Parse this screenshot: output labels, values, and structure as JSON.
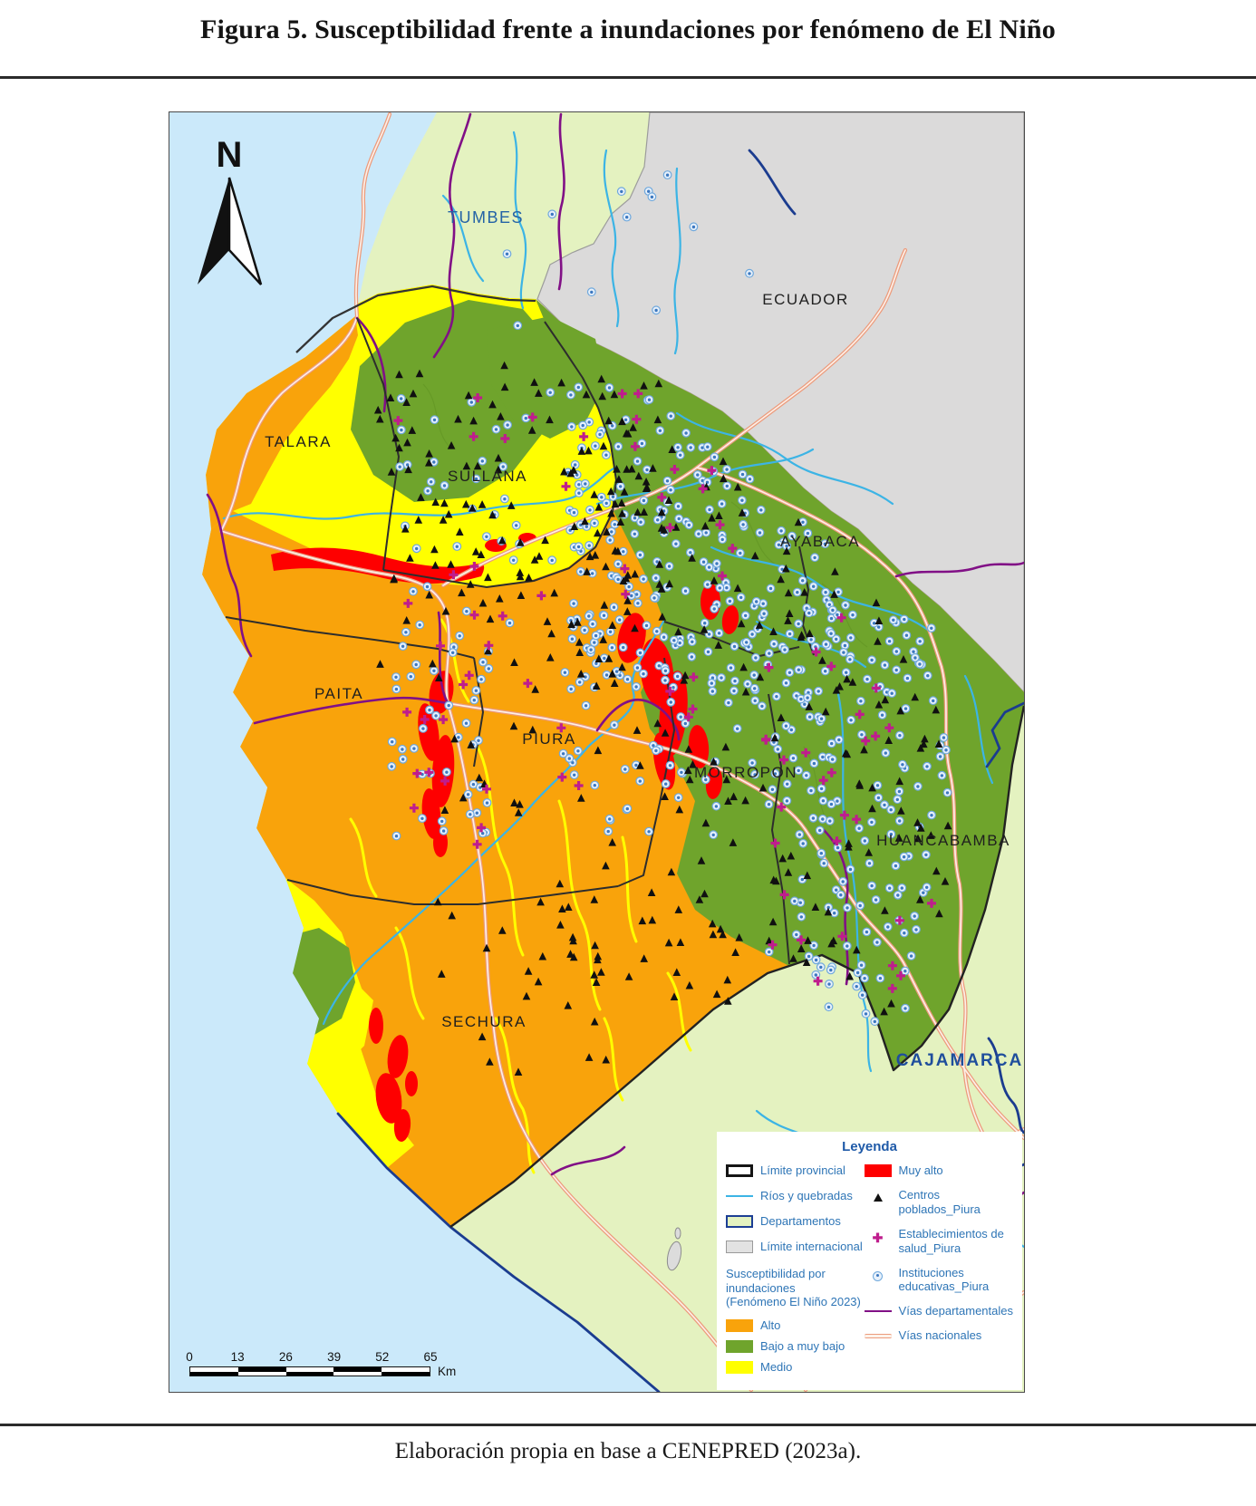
{
  "figure": {
    "title": "Figura 5. Susceptibilidad frente a inundaciones por fenómeno de El Niño",
    "caption": "Elaboración propia en base a CENEPRED (2023a)."
  },
  "map": {
    "north_label": "N",
    "labels": {
      "tumbes": "TUMBES",
      "ecuador": "ECUADOR",
      "talara": "TALARA",
      "sullana": "SULLANA",
      "ayabaca": "AYABACA",
      "paita": "PAITA",
      "piura": "PIURA",
      "morropon": "MORROPON",
      "huancabamba": "HUANCABAMBA",
      "sechura": "SECHURA",
      "cajamarca": "CAJAMARCA"
    },
    "scalebar": {
      "ticks": [
        "0",
        "13",
        "26",
        "39",
        "52",
        "65"
      ],
      "unit": "Km"
    }
  },
  "legend": {
    "title": "Leyenda",
    "items_left": [
      {
        "label": "Límite provincial"
      },
      {
        "label": "Ríos y quebradas"
      },
      {
        "label": "Departamentos"
      },
      {
        "label": "Límite internacional"
      }
    ],
    "susceptibility": {
      "header_line1": "Susceptibilidad por",
      "header_line2": "inundaciones",
      "header_line3": "(Fenómeno El Niño 2023)",
      "classes": [
        {
          "label": "Alto",
          "color": "#F9A30B"
        },
        {
          "label": "Bajo a muy bajo",
          "color": "#6FA42C"
        },
        {
          "label": "Medio",
          "color": "#FFFF00"
        }
      ]
    },
    "items_right": [
      {
        "label": "Muy alto",
        "color": "#FE0000"
      },
      {
        "label": "Centros poblados_Piura"
      },
      {
        "label": "Establecimientos de salud_Piura"
      },
      {
        "label": "Instituciones educativas_Piura"
      },
      {
        "label": "Vías departamentales",
        "color": "#811086"
      },
      {
        "label": "Vías nacionales",
        "color": "#EC9B7C"
      }
    ]
  },
  "colors": {
    "alto": "#F9A30B",
    "medio": "#FFFF00",
    "bajo_muy_bajo": "#6FA42C",
    "muy_alto": "#FE0000",
    "rios": "#3CB4E5",
    "vias_departamentales": "#811086",
    "vias_nacionales": "#EC9B7C",
    "departamentos": "#E4F2C0",
    "limite_internacional": "#DBDADA",
    "mar": "#CBE9FA",
    "legend_text": "#2E75B6"
  }
}
